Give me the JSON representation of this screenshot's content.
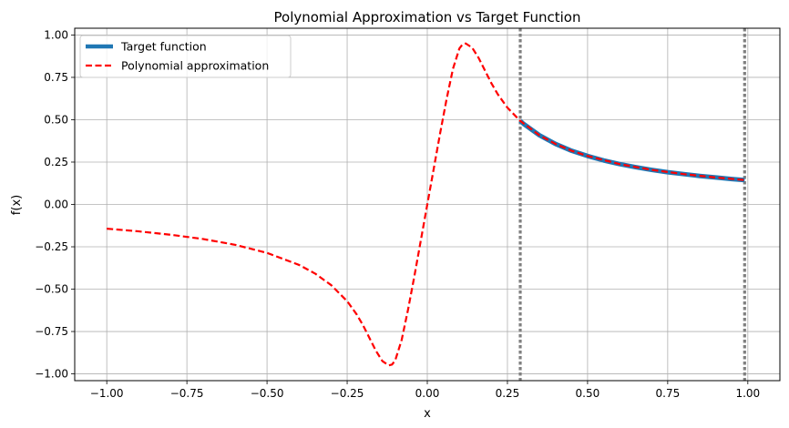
{
  "chart_data": {
    "type": "line",
    "title": "Polynomial Approximation vs Target Function",
    "xlabel": "x",
    "ylabel": "f(x)",
    "xlim": [
      -1.1,
      1.1
    ],
    "ylim": [
      -1.04,
      1.04
    ],
    "grid": true,
    "legend_position": "top-left",
    "xticks": [
      -1.0,
      -0.75,
      -0.5,
      -0.25,
      0.0,
      0.25,
      0.5,
      0.75,
      1.0
    ],
    "xtick_labels": [
      "−1.00",
      "−0.75",
      "−0.50",
      "−0.25",
      "0.00",
      "0.25",
      "0.50",
      "0.75",
      "1.00"
    ],
    "yticks": [
      1.0,
      0.75,
      0.5,
      0.25,
      0.0,
      -0.25,
      -0.5,
      -0.75,
      -1.0
    ],
    "ytick_labels": [
      "1.00",
      "0.75",
      "0.50",
      "0.25",
      "0.00",
      "−0.25",
      "−0.50",
      "−0.75",
      "−1.00"
    ],
    "vlines": [
      0.29,
      0.99
    ],
    "series": [
      {
        "name": "Target function",
        "color": "#1f77b4",
        "style": "solid",
        "x": [
          0.29,
          0.3,
          0.35,
          0.4,
          0.45,
          0.5,
          0.55,
          0.6,
          0.65,
          0.7,
          0.75,
          0.8,
          0.85,
          0.9,
          0.95,
          0.99
        ],
        "y": [
          0.493,
          0.476,
          0.408,
          0.357,
          0.317,
          0.286,
          0.26,
          0.238,
          0.22,
          0.204,
          0.19,
          0.179,
          0.168,
          0.159,
          0.15,
          0.144
        ]
      },
      {
        "name": "Polynomial approximation",
        "color": "#ff0000",
        "style": "dashed",
        "x": [
          -1.0,
          -0.9,
          -0.8,
          -0.7,
          -0.6,
          -0.5,
          -0.4,
          -0.35,
          -0.3,
          -0.25,
          -0.22,
          -0.2,
          -0.18,
          -0.16,
          -0.14,
          -0.12,
          -0.11,
          -0.1,
          -0.08,
          -0.06,
          -0.04,
          -0.02,
          0.0,
          0.02,
          0.04,
          0.06,
          0.08,
          0.1,
          0.11,
          0.12,
          0.14,
          0.16,
          0.18,
          0.2,
          0.22,
          0.25,
          0.29,
          0.35,
          0.4,
          0.45,
          0.5,
          0.6,
          0.7,
          0.8,
          0.9,
          0.99
        ],
        "y": [
          -0.143,
          -0.159,
          -0.179,
          -0.204,
          -0.238,
          -0.286,
          -0.357,
          -0.408,
          -0.476,
          -0.571,
          -0.65,
          -0.715,
          -0.79,
          -0.865,
          -0.925,
          -0.95,
          -0.945,
          -0.92,
          -0.8,
          -0.62,
          -0.42,
          -0.21,
          0.0,
          0.21,
          0.42,
          0.62,
          0.8,
          0.92,
          0.945,
          0.95,
          0.925,
          0.865,
          0.79,
          0.715,
          0.65,
          0.571,
          0.493,
          0.408,
          0.357,
          0.317,
          0.286,
          0.238,
          0.204,
          0.179,
          0.159,
          0.144
        ]
      }
    ]
  }
}
